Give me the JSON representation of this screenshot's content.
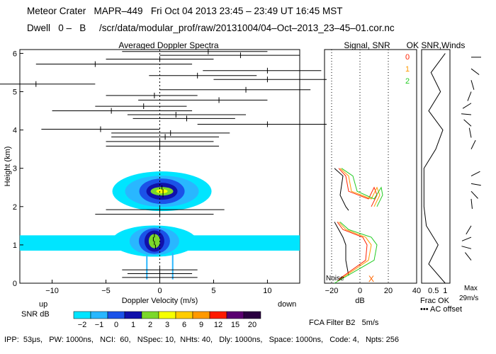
{
  "header": {
    "line1": "Meteor Crater   MAPR–449   Fri Oct 04 2013 23:45 – 23:49 UT 16:45 MST",
    "line2": "Dwell   0 –   B     /scr/data/modular_prof/raw/20131004/04–Oct–2013_23–45–01.cor.nc"
  },
  "footer": {
    "text": "IPP:  53μs,   PW: 1000ns,   NCI:  60,   NSpec: 10,  NHts: 40,   Dly: 1000ns,   Space: 1000ns,   Code: 4,   Npts: 256"
  },
  "labels": {
    "up": "up",
    "down": "down",
    "snr_db": "SNR dB",
    "noise": "Noise",
    "fca": "FCA Filter B2   5m/s"
  },
  "colors": {
    "snr_scale": [
      "#00e5ff",
      "#29b7ff",
      "#1b52e8",
      "#1010aa",
      "#7ad82a",
      "#f6ff00",
      "#ffcc00",
      "#ff9900",
      "#ff1a00",
      "#5a0070",
      "#2a0040",
      "#7a00a8"
    ],
    "noise_line": "#000000",
    "snr_line_0": "#ff2200",
    "snr_line_1": "#ff9900",
    "snr_line_2": "#22cc22",
    "axis": "#000000"
  },
  "chart_data": [
    {
      "type": "heatmap",
      "title": "Averaged Doppler Spectra",
      "xlabel": "Doppler Velocity (m/s)",
      "ylabel": "Height (km)",
      "xlim": [
        -13,
        13
      ],
      "ylim": [
        0,
        6.1
      ],
      "xticks": [
        -10,
        -5,
        0,
        5,
        10
      ],
      "yticks": [
        0,
        1,
        2,
        3,
        4,
        5,
        6
      ],
      "colorbar": {
        "label": "SNR dB",
        "ticks": [
          "−2",
          "−1",
          "0",
          "1",
          "2",
          "3",
          "6",
          "9",
          "12",
          "15",
          "20"
        ]
      },
      "spectra": [
        {
          "h": 0.95,
          "v": -0.4
        },
        {
          "h": 1.05,
          "v": -0.5
        },
        {
          "h": 1.15,
          "v": -0.6
        },
        {
          "h": 1.25,
          "v": -0.5
        },
        {
          "h": 2.3,
          "v": 0.3
        },
        {
          "h": 2.4,
          "v": 0.3
        },
        {
          "h": 2.5,
          "v": 0.2
        }
      ],
      "error_bars": [
        {
          "h": 6.05,
          "v": 4.5,
          "lo": -3.5,
          "hi": 10.0
        },
        {
          "h": 5.95,
          "v": 7.5,
          "lo": 0.0,
          "hi": 13.0
        },
        {
          "h": 5.85,
          "v": 0.0,
          "lo": -5.0,
          "hi": 5.0
        },
        {
          "h": 5.72,
          "v": -6.0,
          "lo": -11.5,
          "hi": 3.0
        },
        {
          "h": 5.55,
          "v": 10.0,
          "lo": 4.0,
          "hi": 15.0
        },
        {
          "h": 5.42,
          "v": 3.5,
          "lo": -1.0,
          "hi": 9.0
        },
        {
          "h": 5.32,
          "v": 10.0,
          "lo": 5.0,
          "hi": 15.5
        },
        {
          "h": 5.2,
          "v": -11.5,
          "lo": -17.0,
          "hi": -6.0
        },
        {
          "h": 5.05,
          "v": 8.0,
          "lo": 0.0,
          "hi": 14.0
        },
        {
          "h": 4.9,
          "v": -0.5,
          "lo": -5.0,
          "hi": 3.5
        },
        {
          "h": 4.78,
          "v": 5.5,
          "lo": -2.0,
          "hi": 10.0
        },
        {
          "h": 4.62,
          "v": -1.5,
          "lo": -6.0,
          "hi": 2.5
        },
        {
          "h": 4.5,
          "v": -4.5,
          "lo": -10.0,
          "hi": 3.0
        },
        {
          "h": 4.4,
          "v": 1.5,
          "lo": -3.0,
          "hi": 8.0
        },
        {
          "h": 4.3,
          "v": 2.5,
          "lo": -2.5,
          "hi": 7.0
        },
        {
          "h": 4.15,
          "v": 10.0,
          "lo": 3.5,
          "hi": 15.5
        },
        {
          "h": 4.02,
          "v": -5.5,
          "lo": -11.0,
          "hi": 0.0
        },
        {
          "h": 3.92,
          "v": 1.0,
          "lo": -4.5,
          "hi": 6.5
        },
        {
          "h": 3.82,
          "v": 0.5,
          "lo": -4.5,
          "hi": 5.5
        },
        {
          "h": 3.7,
          "v": 0.0,
          "lo": -5.0,
          "hi": 5.0
        },
        {
          "h": 3.58,
          "v": 0.0,
          "lo": -5.0,
          "hi": 5.5
        },
        {
          "h": 1.92,
          "v": 0.0,
          "lo": -5.0,
          "hi": 6.0
        },
        {
          "h": 1.8,
          "v": 0.0,
          "lo": -6.0,
          "hi": 5.0
        },
        {
          "h": 0.35,
          "v": 0.0,
          "lo": -3.5,
          "hi": 3.5
        },
        {
          "h": 0.25,
          "v": 0.0,
          "lo": -3.0,
          "hi": 3.0
        },
        {
          "h": 0.15,
          "v": 0.0,
          "lo": -3.5,
          "hi": 3.5
        }
      ]
    },
    {
      "type": "line",
      "title": "Signal, SNR",
      "xlabel": "dB",
      "xlim": [
        -25,
        40
      ],
      "ylim": [
        0,
        6.1
      ],
      "xticks": [
        -20,
        0,
        20,
        40
      ],
      "series": [
        {
          "name": "noise",
          "points": [
            [
              -18,
              3.0
            ],
            [
              -12,
              2.8
            ],
            [
              -14,
              2.3
            ],
            [
              -10,
              2.0
            ],
            [
              -8,
              1.9
            ]
          ]
        },
        {
          "name": "snr 0",
          "points": [
            [
              -15,
              3.0
            ],
            [
              -10,
              2.8
            ],
            [
              -8,
              2.4
            ],
            [
              6,
              2.2
            ],
            [
              10,
              2.5
            ],
            [
              12,
              2.3
            ],
            [
              8,
              2.0
            ]
          ]
        },
        {
          "name": "snr 1",
          "points": [
            [
              -14,
              3.0
            ],
            [
              -8,
              2.8
            ],
            [
              -6,
              2.4
            ],
            [
              8,
              2.2
            ],
            [
              12,
              2.5
            ],
            [
              14,
              2.3
            ],
            [
              10,
              2.0
            ]
          ]
        },
        {
          "name": "snr 2",
          "points": [
            [
              -13,
              3.0
            ],
            [
              -5,
              2.8
            ],
            [
              -2,
              2.4
            ],
            [
              10,
              2.2
            ],
            [
              15,
              2.5
            ],
            [
              16,
              2.3
            ],
            [
              12,
              2.0
            ]
          ]
        },
        {
          "name": "noise_low",
          "points": [
            [
              -18,
              1.6
            ],
            [
              -15,
              1.4
            ],
            [
              -12,
              1.2
            ],
            [
              -10,
              1.0
            ],
            [
              -10,
              0.6
            ],
            [
              -8,
              0.2
            ]
          ]
        },
        {
          "name": "snr 0 low",
          "points": [
            [
              -16,
              1.6
            ],
            [
              -12,
              1.4
            ],
            [
              2,
              1.2
            ],
            [
              5,
              1.0
            ],
            [
              4,
              0.6
            ],
            [
              -15,
              0.1
            ]
          ]
        },
        {
          "name": "snr 1 low",
          "points": [
            [
              -15,
              1.6
            ],
            [
              -10,
              1.4
            ],
            [
              4,
              1.2
            ],
            [
              8,
              1.0
            ],
            [
              6,
              0.6
            ],
            [
              -16,
              0.05
            ]
          ]
        },
        {
          "name": "snr 2 low",
          "points": [
            [
              -14,
              1.6
            ],
            [
              -8,
              1.4
            ],
            [
              8,
              1.2
            ],
            [
              12,
              1.0
            ],
            [
              10,
              0.6
            ],
            [
              -18,
              0.0
            ]
          ]
        }
      ],
      "noise_marker": {
        "x": 8,
        "h": 0.0
      }
    },
    {
      "type": "line",
      "title": "OK SNR,Winds",
      "xlabel": "Frac OK",
      "xlim": [
        0,
        1.2
      ],
      "xticks": [
        0.5,
        1
      ],
      "legend": [
        "0",
        "1",
        "2"
      ],
      "legend2": [
        "Frac OK",
        "••• AC offset"
      ],
      "series": [
        {
          "name": "frac ok",
          "points": [
            [
              1.0,
              6.0
            ],
            [
              0.4,
              5.5
            ],
            [
              0.8,
              5.0
            ],
            [
              0.3,
              4.5
            ],
            [
              0.9,
              4.0
            ],
            [
              0.6,
              3.5
            ],
            [
              0.1,
              3.0
            ],
            [
              0.1,
              2.0
            ],
            [
              0.2,
              1.5
            ],
            [
              0.7,
              1.0
            ],
            [
              0.3,
              0.5
            ],
            [
              1.0,
              0.0
            ]
          ]
        }
      ],
      "winds_max": "Max",
      "winds_max_value": "29m/s"
    }
  ]
}
